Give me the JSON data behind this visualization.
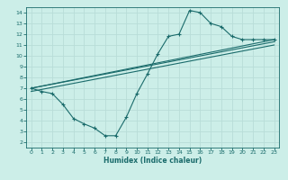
{
  "xlabel": "Humidex (Indice chaleur)",
  "bg_color": "#cceee8",
  "grid_color": "#b8ddd8",
  "line_color": "#1a6b6b",
  "xlim": [
    -0.5,
    23.5
  ],
  "ylim": [
    1.5,
    14.5
  ],
  "xticks": [
    0,
    1,
    2,
    3,
    4,
    5,
    6,
    7,
    8,
    9,
    10,
    11,
    12,
    13,
    14,
    15,
    16,
    17,
    18,
    19,
    20,
    21,
    22,
    23
  ],
  "yticks": [
    2,
    3,
    4,
    5,
    6,
    7,
    8,
    9,
    10,
    11,
    12,
    13,
    14
  ],
  "line1_x": [
    0,
    1,
    2,
    3,
    4,
    5,
    6,
    7,
    8,
    9,
    10,
    11,
    12,
    13,
    14,
    15,
    16,
    17,
    18,
    19,
    20,
    21,
    22,
    23
  ],
  "line1_y": [
    7.0,
    6.7,
    6.5,
    5.5,
    4.2,
    3.7,
    3.3,
    2.6,
    2.6,
    4.3,
    6.5,
    8.3,
    10.2,
    11.8,
    12.0,
    14.2,
    14.0,
    13.0,
    12.7,
    11.8,
    11.5,
    11.5,
    11.5,
    11.5
  ],
  "line2_x": [
    0,
    23
  ],
  "line2_y": [
    7.0,
    11.5
  ],
  "line3_x": [
    0,
    23
  ],
  "line3_y": [
    7.0,
    11.3
  ],
  "line4_x": [
    0,
    23
  ],
  "line4_y": [
    6.7,
    11.0
  ]
}
